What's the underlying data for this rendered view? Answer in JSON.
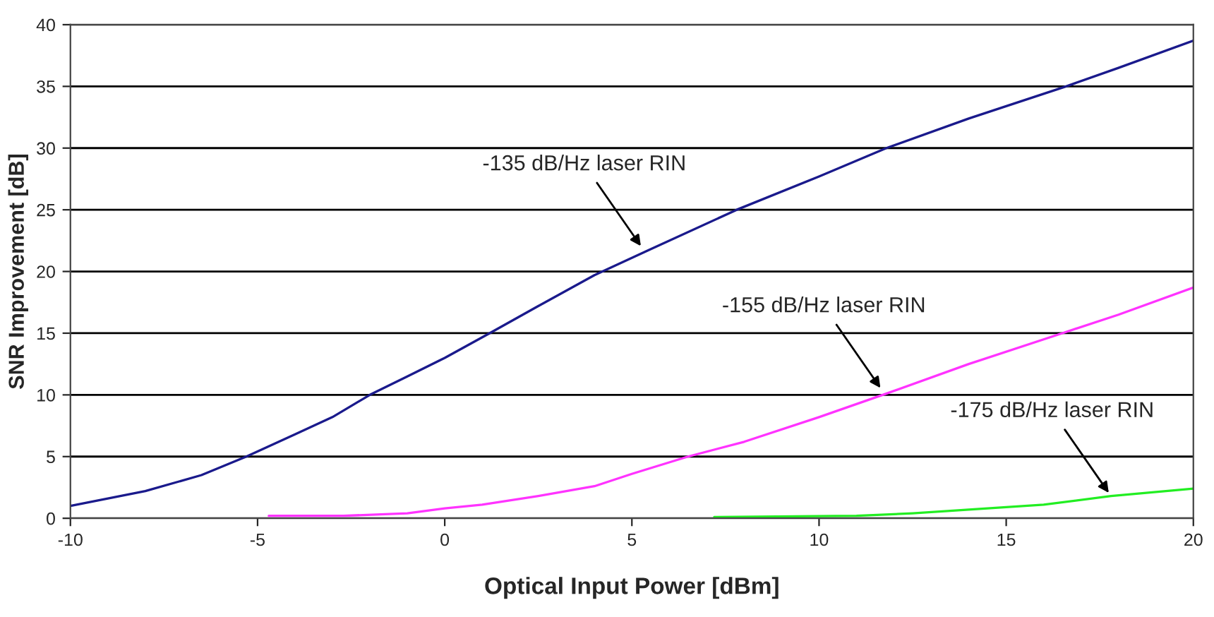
{
  "chart_data": {
    "type": "line",
    "xlabel": "Optical Input Power [dBm]",
    "ylabel": "SNR Improvement [dB]",
    "xlim": [
      -10,
      20
    ],
    "xticks": [
      -10,
      -5,
      0,
      5,
      10,
      15,
      20
    ],
    "ylim": [
      0,
      40
    ],
    "yticks": [
      0,
      5,
      10,
      15,
      20,
      25,
      30,
      35,
      40
    ],
    "grid": "y",
    "marker": "none",
    "line_style": "solid",
    "series": [
      {
        "color": "#1a1a8c",
        "x": [
          -10,
          -8,
          -6.5,
          -5.3,
          -4,
          -3,
          -2,
          -1,
          0,
          1.2,
          2.5,
          4,
          5.5,
          7.8,
          10,
          11.8,
          14,
          16.6,
          18,
          20
        ],
        "values": [
          1,
          2.2,
          3.5,
          5,
          6.8,
          8.2,
          10,
          11.5,
          13,
          15,
          17.2,
          19.7,
          21.8,
          25,
          27.7,
          30,
          32.4,
          35,
          36.5,
          38.7
        ]
      },
      {
        "color": "#ff33ff",
        "x": [
          -4.7,
          -2.7,
          -1,
          0,
          1,
          2.5,
          4,
          5,
          6.5,
          8,
          10,
          11.7,
          14,
          16.5,
          18,
          20
        ],
        "values": [
          0.2,
          0.2,
          0.4,
          0.8,
          1.1,
          1.8,
          2.6,
          3.6,
          5,
          6.2,
          8.2,
          10,
          12.5,
          15,
          16.5,
          18.7
        ]
      },
      {
        "color": "#22ee22",
        "x": [
          7.2,
          11,
          12.5,
          14,
          16,
          17.8,
          20
        ],
        "values": [
          0.1,
          0.2,
          0.4,
          0.7,
          1.1,
          1.8,
          2.4
        ]
      }
    ],
    "annotations": [
      {
        "text": "-135 dB/Hz laser RIN",
        "x": 5.3,
        "y": 21.8
      },
      {
        "text": "-155 dB/Hz laser RIN",
        "x": 11.7,
        "y": 10.3
      },
      {
        "text": "-175 dB/Hz laser RIN",
        "x": 17.8,
        "y": 1.8
      }
    ]
  }
}
